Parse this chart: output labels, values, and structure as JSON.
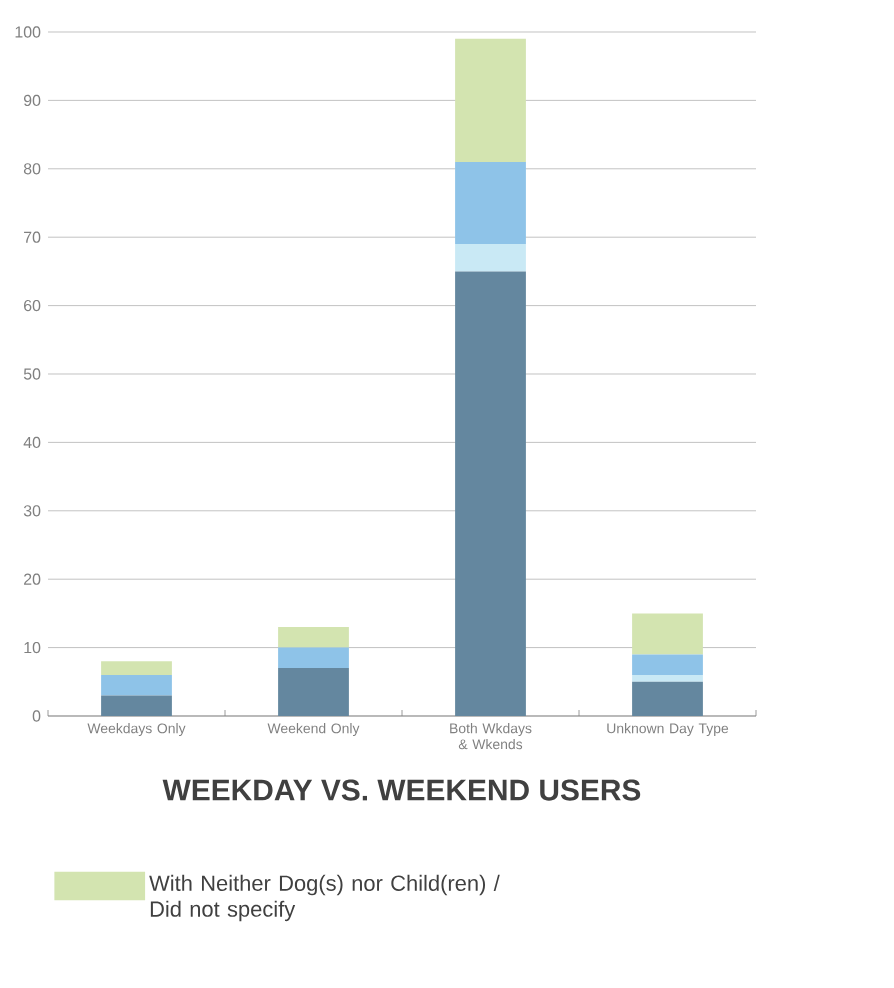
{
  "chart_data": {
    "type": "bar",
    "stacked": true,
    "title": "WEEKDAY VS. WEEKEND USERS",
    "categories": [
      "Weekdays Only",
      "Weekend Only",
      "Both Wkdays & Wkends",
      "Unknown Day Type"
    ],
    "series": [
      {
        "color": "#64879f",
        "values": [
          3,
          7,
          65,
          5
        ]
      },
      {
        "color": "#c9e9f5",
        "values": [
          0,
          0,
          4,
          1
        ]
      },
      {
        "color": "#8ec3e8",
        "values": [
          3,
          3,
          12,
          3
        ]
      },
      {
        "name": "With Neither Dog(s) nor Child(ren) / Did not specify",
        "color": "#d3e4b0",
        "values": [
          2,
          3,
          18,
          6
        ]
      }
    ],
    "ylim": [
      0,
      100
    ],
    "yticks": [
      0,
      10,
      20,
      30,
      40,
      50,
      60,
      70,
      80,
      90,
      100
    ],
    "grid": "y",
    "legend": "bottom"
  }
}
